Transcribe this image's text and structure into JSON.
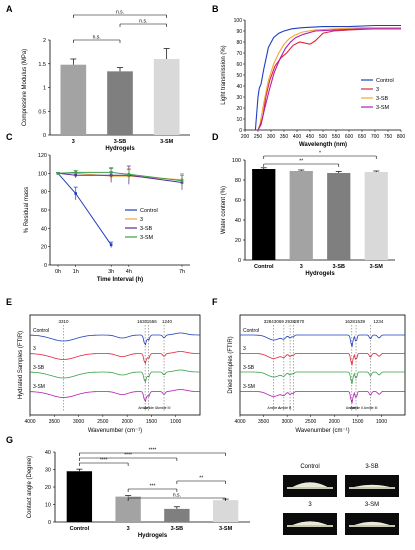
{
  "chart_data": [
    {
      "panel": "A",
      "type": "bar",
      "ylabel": "Compressive Modulus (MPa)",
      "xlabel": "Hydrogels",
      "categories": [
        "3",
        "3-SB",
        "3-SM"
      ],
      "values": [
        1.48,
        1.34,
        1.6
      ],
      "errors": [
        0.12,
        0.08,
        0.22
      ],
      "ylim": [
        0,
        2
      ],
      "yticks": [
        "0",
        "0.5",
        "1",
        "1.5",
        "2"
      ],
      "bar_colors": [
        "#a3a3a3",
        "#7f7f7f",
        "#d9d9d9"
      ],
      "significance": [
        {
          "from": 0,
          "to": 1,
          "label": "n.s."
        },
        {
          "from": 0,
          "to": 2,
          "label": "n.s."
        },
        {
          "from": 1,
          "to": 2,
          "label": "n.s."
        }
      ]
    },
    {
      "panel": "B",
      "type": "line",
      "ylabel": "Light transmission (%)",
      "xlabel": "Wavelength (nm)",
      "xlim": [
        200,
        800
      ],
      "ylim": [
        0,
        100
      ],
      "xticks": [
        "200",
        "250",
        "300",
        "350",
        "400",
        "450",
        "500",
        "550",
        "600",
        "650",
        "700",
        "750",
        "800"
      ],
      "yticks": [
        "0",
        "10",
        "20",
        "30",
        "40",
        "50",
        "60",
        "70",
        "80",
        "90",
        "100"
      ],
      "series": [
        {
          "name": "Control",
          "color": "#1f3fbf",
          "x": [
            240,
            250,
            255,
            262,
            272,
            290,
            310,
            330,
            350,
            380,
            420,
            500,
            600,
            700,
            800
          ],
          "y": [
            0,
            30,
            38,
            42,
            55,
            75,
            84,
            88,
            90,
            92,
            93,
            94,
            94,
            95,
            95
          ]
        },
        {
          "name": "3",
          "color": "#e0243a",
          "x": [
            250,
            262,
            270,
            280,
            295,
            315,
            340,
            360,
            385,
            410,
            430,
            450,
            470,
            500,
            540,
            600,
            700,
            800
          ],
          "y": [
            0,
            5,
            14,
            30,
            45,
            58,
            66,
            70,
            77,
            80,
            79,
            78,
            81,
            88,
            90,
            91,
            92,
            92
          ]
        },
        {
          "name": "3-SB",
          "color": "#f0a830",
          "x": [
            250,
            258,
            265,
            275,
            290,
            310,
            330,
            350,
            370,
            390,
            420,
            470,
            550,
            650,
            800
          ],
          "y": [
            0,
            6,
            15,
            28,
            45,
            60,
            70,
            78,
            83,
            86,
            89,
            91,
            92,
            93,
            93
          ]
        },
        {
          "name": "3-SM",
          "color": "#b01eb0",
          "x": [
            250,
            258,
            266,
            276,
            292,
            312,
            335,
            355,
            375,
            395,
            425,
            470,
            550,
            650,
            800
          ],
          "y": [
            0,
            4,
            10,
            20,
            35,
            52,
            65,
            74,
            80,
            84,
            87,
            90,
            91,
            92,
            92
          ]
        }
      ]
    },
    {
      "panel": "C",
      "type": "line",
      "ylabel": "% Residual mass",
      "xlabel": "Time Interval (h)",
      "categories": [
        "0h",
        "1h",
        "3h",
        "4h",
        "7h"
      ],
      "x": [
        0,
        1,
        3,
        4,
        7
      ],
      "ylim": [
        0,
        120
      ],
      "yticks": [
        "0",
        "20",
        "40",
        "60",
        "80",
        "100",
        "120"
      ],
      "series": [
        {
          "name": "Control",
          "color": "#1f3fbf",
          "x": [
            0,
            1,
            3
          ],
          "y": [
            100,
            78,
            22
          ],
          "err": [
            1,
            7,
            3
          ]
        },
        {
          "name": "3",
          "color": "#f0a830",
          "x": [
            0,
            1,
            3,
            4,
            7
          ],
          "y": [
            100,
            100,
            97,
            97,
            93
          ],
          "err": [
            1,
            3,
            5,
            8,
            7
          ]
        },
        {
          "name": "3-SB",
          "color": "#5a2a9a",
          "x": [
            0,
            1,
            3,
            4,
            7
          ],
          "y": [
            100,
            98,
            98,
            98,
            90
          ],
          "err": [
            1,
            3,
            8,
            10,
            8
          ]
        },
        {
          "name": "3-SM",
          "color": "#3aa04a",
          "x": [
            0,
            1,
            3,
            4,
            7
          ],
          "y": [
            100,
            101,
            101,
            99,
            92
          ],
          "err": [
            1,
            2,
            4,
            5,
            6
          ]
        }
      ]
    },
    {
      "panel": "D",
      "type": "bar",
      "ylabel": "Water content (%)",
      "xlabel": "Hydrogels",
      "categories": [
        "Control",
        "3",
        "3-SB",
        "3-SM"
      ],
      "values": [
        91,
        89,
        87,
        88
      ],
      "errors": [
        1.2,
        1.0,
        1.5,
        1.0
      ],
      "ylim": [
        0,
        100
      ],
      "yticks": [
        "0",
        "20",
        "40",
        "60",
        "80",
        "100"
      ],
      "bar_colors": [
        "#000000",
        "#a3a3a3",
        "#7f7f7f",
        "#d9d9d9"
      ],
      "significance": [
        {
          "from": 0,
          "to": 2,
          "label": "**"
        },
        {
          "from": 0,
          "to": 3,
          "label": "*"
        }
      ]
    },
    {
      "panel": "E",
      "type": "line",
      "ylabel": "Hydrated Samples (FTIR)",
      "xlabel": "Wavenumber (cm⁻¹)",
      "xlim": [
        4000,
        500
      ],
      "xticks": [
        "4000",
        "3500",
        "3000",
        "2500",
        "2000",
        "1500",
        "1000"
      ],
      "peaks": [
        "3310",
        "1630",
        "1556",
        "1240"
      ],
      "annotations": [
        "Amide I",
        "Amide II",
        "Amide III"
      ],
      "series": [
        {
          "name": "Control",
          "color": "#1f3fbf"
        },
        {
          "name": "3",
          "color": "#e0243a"
        },
        {
          "name": "3-SB",
          "color": "#3aa04a"
        },
        {
          "name": "3-SM",
          "color": "#b01eb0"
        }
      ]
    },
    {
      "panel": "F",
      "type": "line",
      "ylabel": "Dried samples (FTIR)",
      "xlabel": "Wavenumber (cm⁻¹)",
      "xlim": [
        4000,
        500
      ],
      "xticks": [
        "4000",
        "3500",
        "3000",
        "2500",
        "2000",
        "1500",
        "1000"
      ],
      "peaks": [
        "3284",
        "3069",
        "2938",
        "2870",
        "1628",
        "1539",
        "1234"
      ],
      "annotations": [
        "Amide A",
        "Amide B",
        "Amide I",
        "Amide II",
        "Amide III"
      ],
      "series": [
        {
          "name": "Control",
          "color": "#1f3fbf"
        },
        {
          "name": "3",
          "color": "#e0243a"
        },
        {
          "name": "3-SB",
          "color": "#3aa04a"
        },
        {
          "name": "3-SM",
          "color": "#b01eb0"
        }
      ]
    },
    {
      "panel": "G",
      "type": "bar",
      "ylabel": "Contact angle (Degree)",
      "xlabel": "Hydrogels",
      "categories": [
        "Control",
        "3",
        "3-SB",
        "3-SM"
      ],
      "values": [
        29,
        14.5,
        7.5,
        12.5
      ],
      "errors": [
        1.2,
        0.6,
        1.2,
        0.6
      ],
      "ylim": [
        0,
        40
      ],
      "yticks": [
        "0",
        "10",
        "20",
        "30",
        "40"
      ],
      "bar_colors": [
        "#000000",
        "#a3a3a3",
        "#7f7f7f",
        "#d9d9d9"
      ],
      "significance": [
        {
          "from": 0,
          "to": 1,
          "label": "****"
        },
        {
          "from": 0,
          "to": 2,
          "label": "****"
        },
        {
          "from": 0,
          "to": 3,
          "label": "****"
        },
        {
          "from": 1,
          "to": 2,
          "label": "***"
        },
        {
          "from": 1,
          "to": 3,
          "label": "n.s."
        },
        {
          "from": 2,
          "to": 3,
          "label": "**"
        }
      ]
    }
  ],
  "panel_labels": [
    "A",
    "B",
    "C",
    "D",
    "E",
    "F",
    "G"
  ],
  "droplet_labels": [
    "Control",
    "3-SB",
    "3",
    "3-SM"
  ]
}
